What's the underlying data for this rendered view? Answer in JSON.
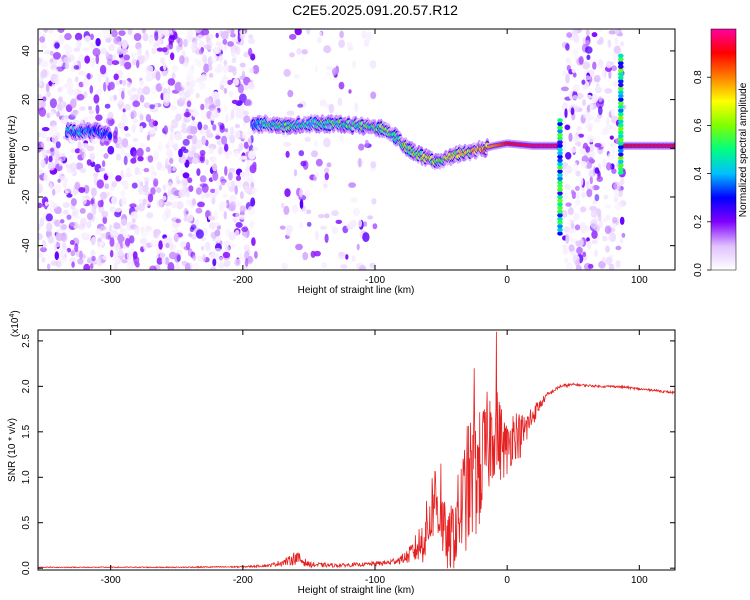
{
  "title": "C2E5.2025.091.20.57.R12",
  "colors": {
    "background": "#ffffff",
    "snr_line": "#e62020",
    "spectrogram_noise": "#9040e0",
    "axes": "#000000"
  },
  "chart_data": [
    {
      "type": "heatmap",
      "name": "spectrogram",
      "xlabel": "Height of straight line (km)",
      "ylabel": "Frequency (Hz)",
      "xlim": [
        -355,
        127
      ],
      "ylim": [
        -50,
        49
      ],
      "xticks": [
        -300,
        -200,
        -100,
        0,
        100
      ],
      "yticks": [
        -40,
        -20,
        0,
        20,
        40
      ],
      "colorbar": {
        "label": "Normalized spectral amplitude",
        "range": [
          0,
          1
        ],
        "ticks": [
          "0.0",
          "0.2",
          "0.4",
          "0.6",
          "0.8"
        ],
        "stops": [
          "#ffffff",
          "#e0c0ff",
          "#8000ff",
          "#0000ff",
          "#00c0ff",
          "#00ff80",
          "#80ff00",
          "#ffff00",
          "#ff8000",
          "#ff0000",
          "#ff00a0"
        ]
      },
      "noise_regions": [
        {
          "from": -355,
          "to": -190,
          "density": 1.0
        },
        {
          "from": -170,
          "to": -100,
          "density": 0.25
        },
        {
          "from": 43,
          "to": 88,
          "density": 0.9
        }
      ],
      "signal_track": [
        {
          "x": -333,
          "y": 7,
          "amp": 0.4
        },
        {
          "x": -315,
          "y": 7,
          "amp": 0.35
        },
        {
          "x": -300,
          "y": 6,
          "amp": 0.3
        },
        {
          "x": -192,
          "y": 9,
          "amp": 0.3
        },
        {
          "x": -185,
          "y": 10,
          "amp": 0.45
        },
        {
          "x": -170,
          "y": 9,
          "amp": 0.5
        },
        {
          "x": -150,
          "y": 10,
          "amp": 0.45
        },
        {
          "x": -130,
          "y": 10,
          "amp": 0.5
        },
        {
          "x": -110,
          "y": 9,
          "amp": 0.5
        },
        {
          "x": -95,
          "y": 8,
          "amp": 0.55
        },
        {
          "x": -85,
          "y": 5,
          "amp": 0.5
        },
        {
          "x": -75,
          "y": 0,
          "amp": 0.55
        },
        {
          "x": -65,
          "y": -3,
          "amp": 0.6
        },
        {
          "x": -55,
          "y": -5,
          "amp": 0.6
        },
        {
          "x": -45,
          "y": -4,
          "amp": 0.6
        },
        {
          "x": -35,
          "y": -2,
          "amp": 0.65
        },
        {
          "x": -25,
          "y": -1,
          "amp": 0.7
        },
        {
          "x": -10,
          "y": 1,
          "amp": 0.8
        },
        {
          "x": 0,
          "y": 2,
          "amp": 0.9
        },
        {
          "x": 20,
          "y": 1,
          "amp": 0.95
        },
        {
          "x": 38,
          "y": 1,
          "amp": 0.95
        },
        {
          "x": 87,
          "y": 1,
          "amp": 0.9
        },
        {
          "x": 105,
          "y": 1,
          "amp": 0.92
        },
        {
          "x": 127,
          "y": 1,
          "amp": 0.92
        }
      ],
      "vertical_streaks": [
        {
          "x": 40,
          "from": -35,
          "to": 12
        },
        {
          "x": 86,
          "from": -10,
          "to": 38
        }
      ]
    },
    {
      "type": "line",
      "name": "snr",
      "xlabel": "Height of straight line (km)",
      "ylabel": "SNR (10 * v/v)",
      "multiplier_label": "(x10",
      "multiplier_exponent": "4",
      "xlim": [
        -355,
        127
      ],
      "ylim": [
        -0.02,
        2.62
      ],
      "xticks": [
        -300,
        -200,
        -100,
        0,
        100
      ],
      "yticks": [
        "0.0",
        "0.5",
        "1.0",
        "1.5",
        "2.0",
        "2.5"
      ],
      "series": [
        {
          "name": "SNR",
          "x": [
            -355,
            -300,
            -250,
            -200,
            -180,
            -165,
            -160,
            -150,
            -130,
            -110,
            -90,
            -80,
            -75,
            -70,
            -65,
            -60,
            -55,
            -50,
            -45,
            -40,
            -35,
            -30,
            -25,
            -20,
            -15,
            -10,
            -5,
            0,
            5,
            10,
            15,
            20,
            25,
            30,
            35,
            40,
            50,
            60,
            70,
            80,
            90,
            100,
            110,
            120,
            127
          ],
          "y": [
            0.01,
            0.01,
            0.01,
            0.015,
            0.03,
            0.08,
            0.12,
            0.04,
            0.03,
            0.04,
            0.06,
            0.1,
            0.13,
            0.2,
            0.28,
            0.45,
            0.8,
            0.55,
            0.25,
            0.4,
            0.65,
            0.9,
            1.0,
            1.1,
            1.35,
            1.55,
            1.4,
            1.3,
            1.5,
            1.45,
            1.55,
            1.7,
            1.8,
            1.9,
            1.95,
            2.0,
            2.02,
            2.01,
            2.0,
            2.0,
            1.99,
            1.97,
            1.96,
            1.94,
            1.93
          ],
          "amplitude": [
            0.005,
            0.005,
            0.006,
            0.008,
            0.015,
            0.05,
            0.08,
            0.03,
            0.02,
            0.02,
            0.03,
            0.05,
            0.08,
            0.15,
            0.25,
            0.35,
            0.45,
            0.4,
            0.3,
            0.45,
            0.55,
            0.7,
            0.75,
            0.65,
            0.6,
            0.55,
            0.45,
            0.3,
            0.3,
            0.25,
            0.2,
            0.12,
            0.06,
            0.03,
            0.02,
            0.02,
            0.015,
            0.012,
            0.012,
            0.012,
            0.012,
            0.012,
            0.012,
            0.012,
            0.012
          ],
          "peaks": [
            {
              "x": -8,
              "y": 2.6
            },
            {
              "x": -25,
              "y": 2.2
            },
            {
              "x": -50,
              "y": 1.15
            }
          ]
        }
      ]
    }
  ]
}
